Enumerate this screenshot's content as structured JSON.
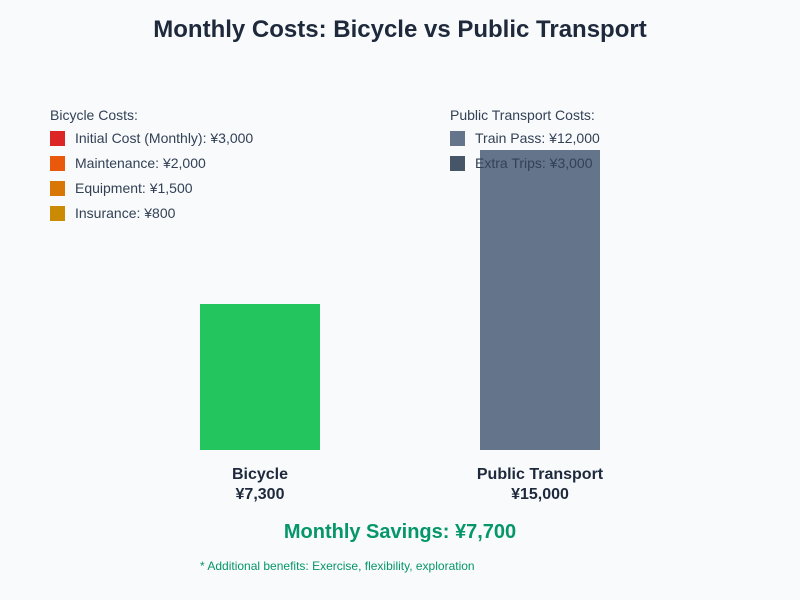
{
  "chart_data": {
    "type": "bar",
    "title": "Monthly Costs: Bicycle vs Public Transport",
    "categories": [
      "Bicycle",
      "Public Transport"
    ],
    "values": [
      7300,
      15000
    ],
    "value_labels": [
      "¥7,300",
      "¥15,000"
    ],
    "bar_colors": [
      "#22c55e",
      "#64748b"
    ],
    "ylim": [
      0,
      15000
    ],
    "grid": false,
    "legends": [
      {
        "title": "Bicycle Costs:",
        "placement": "top-left",
        "items": [
          {
            "label": "Initial Cost (Monthly): ¥3,000",
            "value": 3000,
            "color": "#dc2626"
          },
          {
            "label": "Maintenance: ¥2,000",
            "value": 2000,
            "color": "#ea580c"
          },
          {
            "label": "Equipment: ¥1,500",
            "value": 1500,
            "color": "#d97706"
          },
          {
            "label": "Insurance: ¥800",
            "value": 800,
            "color": "#ca8a04"
          }
        ]
      },
      {
        "title": "Public Transport Costs:",
        "placement": "top-center",
        "items": [
          {
            "label": "Train Pass: ¥12,000",
            "value": 12000,
            "color": "#64748b"
          },
          {
            "label": "Extra Trips: ¥3,000",
            "value": 3000,
            "color": "#475569"
          }
        ]
      }
    ],
    "annotations": {
      "savings": "Monthly Savings: ¥7,700",
      "note": "* Additional benefits: Exercise, flexibility, exploration"
    }
  }
}
